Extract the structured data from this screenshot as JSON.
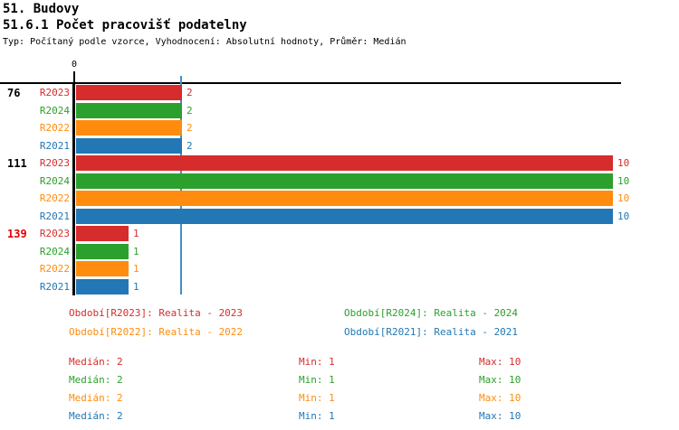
{
  "header": {
    "title": "51. Budovy",
    "subtitle": "51.6.1 Počet pracovišť podatelny",
    "meta": "Typ: Počítaný podle vzorce, Vyhodnocení: Absolutní hodnoty, Průměr: Medián"
  },
  "colors": {
    "red": "#d62c2c",
    "green": "#2ca02c",
    "orange": "#ff8c0e",
    "blue": "#2277b4",
    "highlight": "#e00000",
    "median_line": "#4090c8",
    "axis": "#000000"
  },
  "chart_data": {
    "type": "bar",
    "orientation": "horizontal",
    "title": "51.6.1 Počet pracovišť podatelny",
    "x_axis": {
      "origin_tick_label": "0",
      "min": 0,
      "max": 10
    },
    "grid": false,
    "median_reference_line_value": 2,
    "series_labels": [
      "R2023",
      "R2024",
      "R2022",
      "R2021"
    ],
    "series_colors": [
      "red",
      "green",
      "orange",
      "blue"
    ],
    "groups": [
      {
        "label": "76",
        "highlighted": false,
        "values": [
          2,
          2,
          2,
          2
        ]
      },
      {
        "label": "111",
        "highlighted": false,
        "values": [
          10,
          10,
          10,
          10
        ]
      },
      {
        "label": "139",
        "highlighted": true,
        "values": [
          1,
          1,
          1,
          1
        ]
      }
    ]
  },
  "legend": {
    "items": [
      {
        "label": "Období[R2023]: Realita - 2023",
        "color": "red"
      },
      {
        "label": "Období[R2024]: Realita - 2024",
        "color": "green"
      },
      {
        "label": "Období[R2022]: Realita - 2022",
        "color": "orange"
      },
      {
        "label": "Období[R2021]: Realita - 2021",
        "color": "blue"
      }
    ]
  },
  "stats": {
    "rows": [
      {
        "color": "red",
        "median": "Medián: 2",
        "min": "Min: 1",
        "max": "Max: 10"
      },
      {
        "color": "green",
        "median": "Medián: 2",
        "min": "Min: 1",
        "max": "Max: 10"
      },
      {
        "color": "orange",
        "median": "Medián: 2",
        "min": "Min: 1",
        "max": "Max: 10"
      },
      {
        "color": "blue",
        "median": "Medián: 2",
        "min": "Min: 1",
        "max": "Max: 10"
      }
    ]
  }
}
